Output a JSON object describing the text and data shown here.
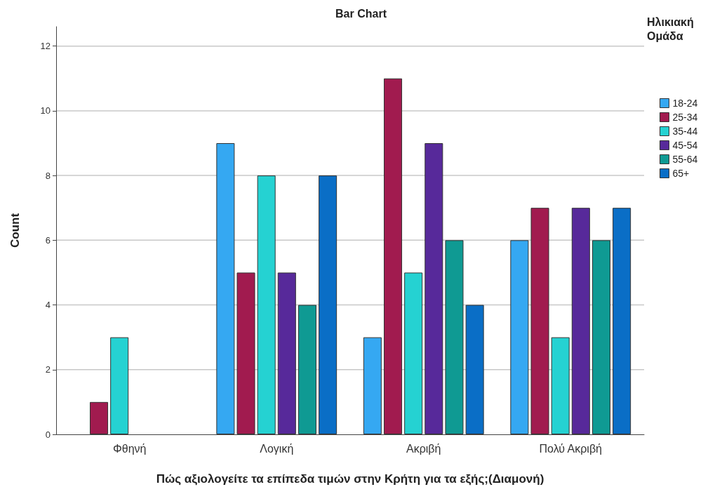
{
  "chart_data": {
    "type": "bar",
    "title": "Bar Chart",
    "xlabel": "Πώς αξιολογείτε τα επίπεδα τιμών στην Κρήτη για τα εξής;(Διαμονή)",
    "ylabel": "Count",
    "legend_title": "Ηλικιακή Ομάδα",
    "categories": [
      "Φθηνή",
      "Λογική",
      "Ακριβή",
      "Πολύ Ακριβή"
    ],
    "series": [
      {
        "name": "18-24",
        "color": "#35a8f2",
        "values": [
          0,
          9,
          3,
          6
        ]
      },
      {
        "name": "25-34",
        "color": "#a11b4f",
        "values": [
          1,
          5,
          11,
          7
        ]
      },
      {
        "name": "35-44",
        "color": "#25d2d2",
        "values": [
          3,
          8,
          5,
          3
        ]
      },
      {
        "name": "45-54",
        "color": "#57299a",
        "values": [
          0,
          5,
          9,
          7
        ]
      },
      {
        "name": "55-64",
        "color": "#0f9a93",
        "values": [
          0,
          4,
          6,
          6
        ]
      },
      {
        "name": "65+",
        "color": "#0a6ec6",
        "values": [
          0,
          8,
          4,
          7
        ]
      }
    ],
    "ylim": [
      0,
      12.6
    ],
    "yticks": [
      0,
      2,
      4,
      6,
      8,
      10,
      12
    ],
    "grid": "y",
    "legend": "top right"
  }
}
